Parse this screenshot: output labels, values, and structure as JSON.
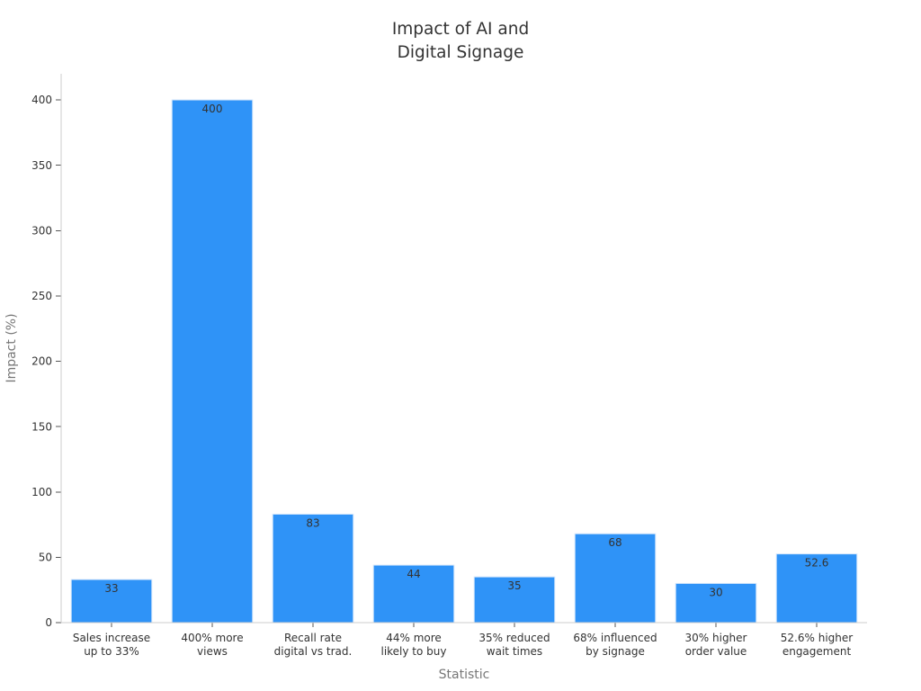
{
  "chart_data": {
    "type": "bar",
    "title": "Impact of AI and\nDigital Signage",
    "xlabel": "Statistic",
    "ylabel": "Impact (%)",
    "categories": [
      "Sales increase\nup to 33%",
      "400% more\nviews",
      "Recall rate\ndigital vs trad.",
      "44% more\nlikely to buy",
      "35% reduced\nwait times",
      "68% influenced\nby signage",
      "30% higher\norder value",
      "52.6% higher\nengagement"
    ],
    "values": [
      33,
      400,
      83,
      44,
      35,
      68,
      30,
      52.6
    ],
    "data_labels": [
      "33",
      "400",
      "83",
      "44",
      "35",
      "68",
      "30",
      "52.6"
    ],
    "ylim": [
      0,
      420
    ],
    "yticks": [
      0,
      50,
      100,
      150,
      200,
      250,
      300,
      350,
      400
    ],
    "grid": false,
    "bar_color": "#2f93f7"
  }
}
